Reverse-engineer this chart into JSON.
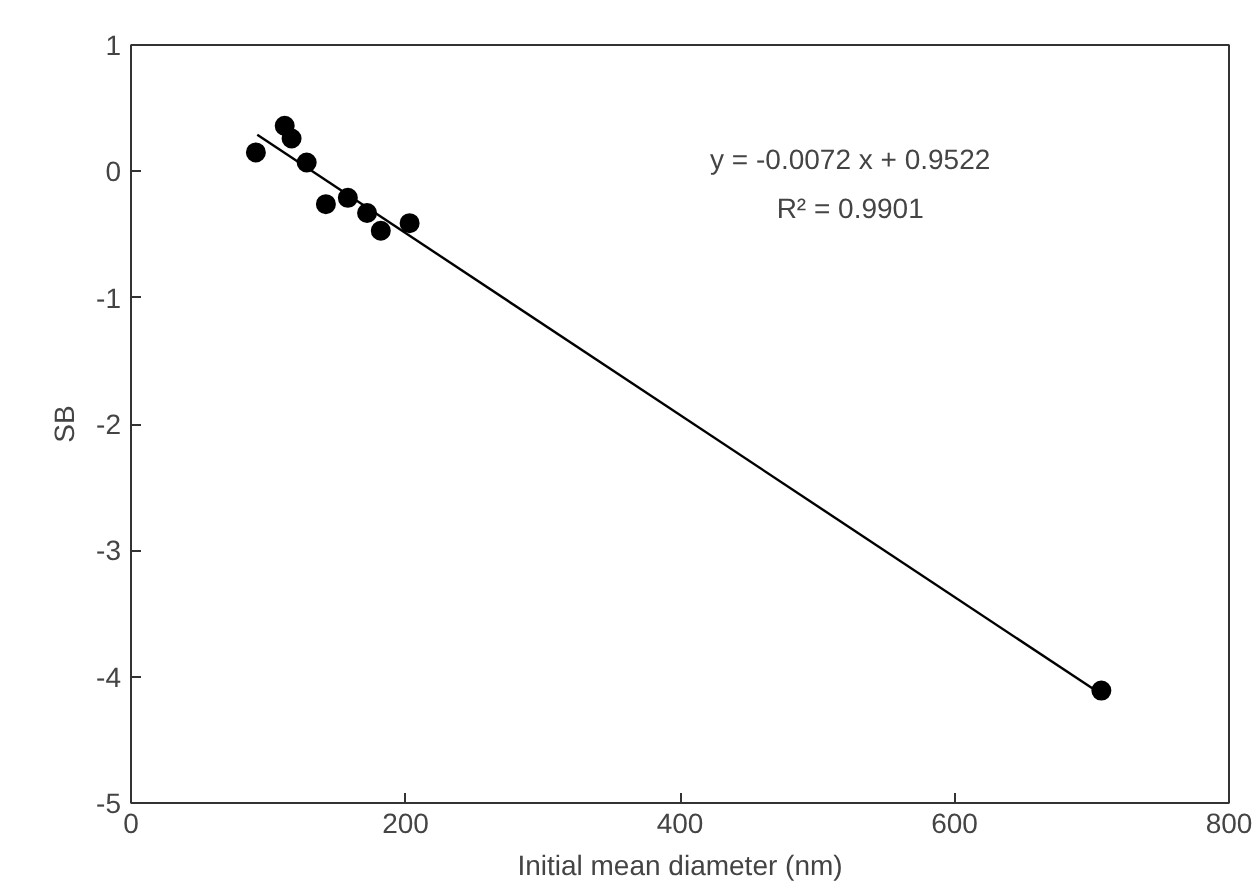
{
  "chart_data": {
    "type": "scatter",
    "xlabel": "Initial mean diameter (nm)",
    "ylabel": "SB",
    "xlim": [
      0,
      800
    ],
    "xticks": [
      0,
      200,
      400,
      600,
      800
    ],
    "ylim": [
      -5,
      1
    ],
    "yticks": [
      -5,
      -4,
      -3,
      -2,
      -1,
      0,
      1
    ],
    "grid": false,
    "marker": "circle",
    "series": [
      {
        "color": "#000000",
        "x": [
          91,
          112,
          117,
          128,
          142,
          158,
          172,
          182,
          203,
          707
        ],
        "values": [
          0.15,
          0.36,
          0.26,
          0.07,
          -0.26,
          -0.21,
          -0.33,
          -0.47,
          -0.41,
          -4.11
        ]
      },
      {
        "type": "line",
        "color": "#000000",
        "line_style": "solid",
        "marker": "none",
        "x": [
          92,
          707
        ],
        "values": [
          0.29,
          -4.14
        ]
      }
    ],
    "annotations": [
      "y = -0.0072 x + 0.9522",
      "R² = 0.9901"
    ]
  }
}
